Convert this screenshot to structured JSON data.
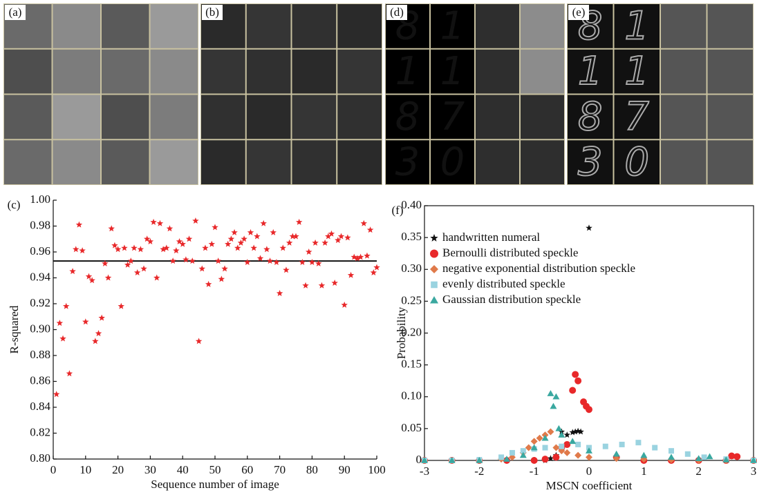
{
  "panels": [
    {
      "label": "(a)"
    },
    {
      "label": "(b)"
    },
    {
      "label": "(d)",
      "digits": [
        "8",
        "1",
        "1",
        "1",
        "8",
        "7",
        "3",
        "0"
      ]
    },
    {
      "label": "(e)",
      "digits": [
        "8",
        "1",
        "1",
        "1",
        "8",
        "7",
        "3",
        "0"
      ]
    }
  ],
  "chart_data": [
    {
      "type": "scatter",
      "label": "(c)",
      "x_label": "Sequence number of image",
      "y_label": "R-squared",
      "xlim": [
        0,
        100
      ],
      "ylim": [
        0.8,
        1.0
      ],
      "xticks": [
        0,
        10,
        20,
        30,
        40,
        50,
        60,
        70,
        80,
        90,
        100
      ],
      "yticks": [
        {
          "value": 0.8,
          "label": "0.80"
        },
        0.82,
        0.84,
        0.86,
        0.88,
        {
          "value": 0.9,
          "label": "0.90"
        },
        0.92,
        0.94,
        0.96,
        0.98,
        {
          "value": 1.0,
          "label": "1.00"
        }
      ],
      "reference_line": 0.953,
      "reference_color": "#111111",
      "frame": false,
      "series": [
        {
          "marker": "star",
          "color": "#e8282a",
          "x": [
            1,
            2,
            3,
            4,
            5,
            6,
            7,
            8,
            9,
            10,
            11,
            12,
            13,
            14,
            15,
            16,
            17,
            18,
            19,
            20,
            21,
            22,
            23,
            24,
            25,
            26,
            27,
            28,
            29,
            30,
            31,
            32,
            33,
            34,
            35,
            36,
            37,
            38,
            39,
            40,
            41,
            42,
            43,
            44,
            45,
            46,
            47,
            48,
            49,
            50,
            51,
            52,
            53,
            54,
            55,
            56,
            57,
            58,
            59,
            60,
            61,
            62,
            63,
            64,
            65,
            66,
            67,
            68,
            69,
            70,
            71,
            72,
            73,
            74,
            75,
            76,
            77,
            78,
            79,
            80,
            81,
            82,
            83,
            84,
            85,
            86,
            87,
            88,
            89,
            90,
            91,
            92,
            93,
            94,
            95,
            96,
            97,
            98,
            99,
            100
          ],
          "values": [
            0.85,
            0.905,
            0.893,
            0.918,
            0.866,
            0.945,
            0.962,
            0.981,
            0.961,
            0.906,
            0.941,
            0.938,
            0.891,
            0.897,
            0.909,
            0.951,
            0.94,
            0.978,
            0.965,
            0.962,
            0.918,
            0.963,
            0.95,
            0.953,
            0.963,
            0.944,
            0.962,
            0.947,
            0.97,
            0.968,
            0.983,
            0.94,
            0.982,
            0.962,
            0.963,
            0.978,
            0.953,
            0.961,
            0.968,
            0.966,
            0.954,
            0.97,
            0.953,
            0.984,
            0.891,
            0.947,
            0.963,
            0.935,
            0.966,
            0.979,
            0.953,
            0.939,
            0.947,
            0.966,
            0.97,
            0.975,
            0.963,
            0.967,
            0.97,
            0.952,
            0.975,
            0.963,
            0.972,
            0.955,
            0.982,
            0.962,
            0.953,
            0.975,
            0.952,
            0.928,
            0.963,
            0.946,
            0.967,
            0.972,
            0.972,
            0.983,
            0.952,
            0.934,
            0.96,
            0.952,
            0.967,
            0.951,
            0.934,
            0.967,
            0.972,
            0.974,
            0.936,
            0.969,
            0.972,
            0.919,
            0.971,
            0.942,
            0.956,
            0.955,
            0.956,
            0.982,
            0.957,
            0.977,
            0.944,
            0.948
          ]
        }
      ]
    },
    {
      "type": "scatter",
      "label": "(f)",
      "x_label": "MSCN coefficient",
      "y_label": "Probability",
      "xlim": [
        -3,
        3
      ],
      "ylim": [
        0,
        0.4
      ],
      "xticks": [
        -3,
        -2,
        -1,
        0,
        1,
        2,
        3
      ],
      "yticks": [
        0,
        0.05,
        {
          "value": 0.1,
          "label": "0.10"
        },
        0.15,
        {
          "value": 0.2,
          "label": "0.20"
        },
        0.25,
        {
          "value": 0.3,
          "label": "0.30"
        },
        0.35,
        {
          "value": 0.4,
          "label": "0.40"
        }
      ],
      "frame": true,
      "legend": "upper left",
      "series": [
        {
          "name": "handwritten numeral",
          "marker": "star",
          "color": "#111111",
          "x": [
            -3,
            -2.5,
            -2,
            -1.5,
            -1,
            -0.8,
            -0.7,
            -0.6,
            -0.5,
            -0.4,
            -0.3,
            -0.25,
            -0.2,
            -0.15,
            -0.1,
            0,
            0.5,
            1,
            1.5,
            2,
            2.5,
            3
          ],
          "values": [
            0,
            0,
            0,
            0,
            0,
            0,
            0.003,
            0.008,
            0.045,
            0.04,
            0.044,
            0.045,
            0.046,
            0.045,
            0.091,
            0.365,
            0.005,
            0.003,
            0,
            0,
            0,
            0
          ]
        },
        {
          "name": "Bernoulli distributed speckle",
          "marker": "circle",
          "color": "#e8282a",
          "x": [
            -3,
            -2.5,
            -2,
            -1.5,
            -1,
            -0.8,
            -0.6,
            -0.5,
            -0.4,
            -0.3,
            -0.25,
            -0.2,
            -0.1,
            -0.05,
            0,
            0.5,
            1,
            1.5,
            2,
            2.5,
            2.6,
            2.7,
            3
          ],
          "values": [
            0,
            0,
            0,
            0,
            0,
            0.002,
            0.005,
            0.02,
            0.025,
            0.11,
            0.135,
            0.125,
            0.092,
            0.085,
            0.08,
            0.005,
            0,
            0,
            0,
            0,
            0.007,
            0.006,
            0
          ]
        },
        {
          "name": "negative exponential distribution speckle",
          "marker": "diamond",
          "color": "#e07a4a",
          "x": [
            -3,
            -2.5,
            -2,
            -1.6,
            -1.4,
            -1.2,
            -1.1,
            -1,
            -0.9,
            -0.8,
            -0.7,
            -0.6,
            -0.5,
            -0.4,
            -0.2,
            0,
            0.5,
            1,
            1.5,
            2,
            2.5,
            3
          ],
          "values": [
            0,
            0,
            0,
            0.002,
            0.005,
            0.012,
            0.02,
            0.03,
            0.035,
            0.04,
            0.045,
            0.02,
            0.015,
            0.012,
            0.008,
            0.005,
            0.003,
            0.002,
            0.001,
            0,
            0,
            0
          ]
        },
        {
          "name": "evenly distributed speckle",
          "marker": "square",
          "color": "#9ad3e0",
          "x": [
            -3,
            -2.5,
            -2,
            -1.6,
            -1.4,
            -1.2,
            -1,
            -0.8,
            -0.5,
            -0.2,
            0,
            0.3,
            0.6,
            0.9,
            1.2,
            1.5,
            1.8,
            2.1,
            2.5,
            3
          ],
          "values": [
            0,
            0,
            0.001,
            0.005,
            0.012,
            0.015,
            0.018,
            0.02,
            0.022,
            0.025,
            0.02,
            0.022,
            0.025,
            0.028,
            0.02,
            0.015,
            0.01,
            0.005,
            0.002,
            0
          ]
        },
        {
          "name": "Gaussian distribution speckle",
          "marker": "triangle",
          "color": "#3aa8a0",
          "x": [
            -3,
            -2.5,
            -2,
            -1.5,
            -1.2,
            -1,
            -0.8,
            -0.7,
            -0.65,
            -0.6,
            -0.55,
            -0.5,
            -0.3,
            0,
            0.5,
            1,
            1.5,
            2,
            2.2,
            2.5,
            3
          ],
          "values": [
            0,
            0,
            0,
            0.002,
            0.008,
            0.02,
            0.035,
            0.105,
            0.085,
            0.1,
            0.05,
            0.04,
            0.03,
            0.015,
            0.01,
            0.008,
            0.005,
            0.003,
            0.006,
            0.001,
            0
          ]
        }
      ]
    }
  ]
}
